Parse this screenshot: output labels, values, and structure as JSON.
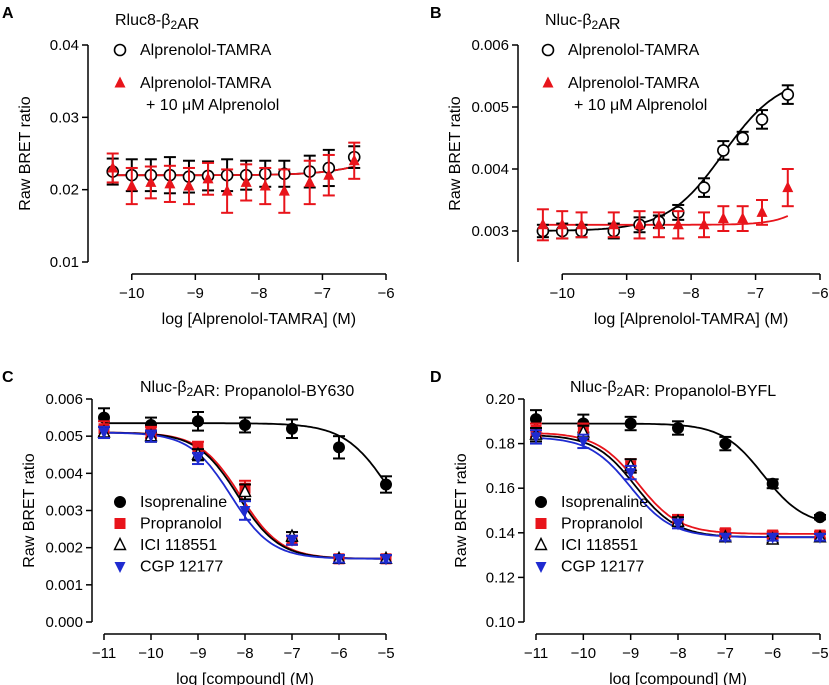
{
  "chart_data": [
    {
      "panel": "A",
      "type": "scatter",
      "title": "Rluc8-β₂AR",
      "xlabel": "log [Alprenolol-TAMRA] (M)",
      "ylabel": "Raw BRET ratio",
      "xlim": [
        -10.5,
        -6
      ],
      "ylim": [
        0.01,
        0.04
      ],
      "xticks": [
        -10,
        -9,
        -8,
        -7,
        -6
      ],
      "xticklabels": [
        "−10",
        "−9",
        "−8",
        "−7",
        "−6"
      ],
      "yticks": [
        0.01,
        0.02,
        0.03,
        0.04
      ],
      "yticklabels": [
        "0.01",
        "0.02",
        "0.03",
        "0.04"
      ],
      "legend_position": "top-left",
      "series": [
        {
          "name": "Alprenolol-TAMRA",
          "marker": "open-circle",
          "color": "#000000",
          "x": [
            -10.3,
            -10.0,
            -9.7,
            -9.4,
            -9.1,
            -8.8,
            -8.5,
            -8.2,
            -7.9,
            -7.6,
            -7.2,
            -6.9,
            -6.5
          ],
          "y": [
            0.0225,
            0.022,
            0.022,
            0.022,
            0.0218,
            0.0219,
            0.022,
            0.022,
            0.0222,
            0.0222,
            0.0225,
            0.023,
            0.0245
          ],
          "err": [
            0.0018,
            0.0022,
            0.0022,
            0.0025,
            0.0022,
            0.002,
            0.0022,
            0.002,
            0.0018,
            0.0018,
            0.0022,
            0.0025,
            0.0015
          ],
          "fit": {
            "bottom": 0.022,
            "top": 0.027,
            "logEC50": -6.0,
            "hill": 1,
            "color": "#000000"
          }
        },
        {
          "name": "Alprenolol-TAMRA\n+ 10 μM Alprenolol",
          "marker": "filled-triangle",
          "color": "#e8141b",
          "x": [
            -10.3,
            -10.0,
            -9.7,
            -9.4,
            -9.1,
            -8.8,
            -8.5,
            -8.2,
            -7.9,
            -7.6,
            -7.2,
            -6.9,
            -6.5
          ],
          "y": [
            0.023,
            0.0205,
            0.021,
            0.0208,
            0.0205,
            0.0215,
            0.0198,
            0.021,
            0.0205,
            0.0198,
            0.021,
            0.022,
            0.024
          ],
          "err": [
            0.002,
            0.0025,
            0.0022,
            0.0025,
            0.0025,
            0.0022,
            0.003,
            0.0025,
            0.0025,
            0.003,
            0.003,
            0.0028,
            0.0025
          ],
          "fit": {
            "bottom": 0.022,
            "top": 0.027,
            "logEC50": -6.0,
            "hill": 1,
            "color": "#e8141b"
          }
        }
      ]
    },
    {
      "panel": "B",
      "type": "scatter",
      "title": "Nluc-β₂AR",
      "xlabel": "log [Alprenolol-TAMRA] (M)",
      "ylabel": "Raw BRET ratio",
      "xlim": [
        -10.5,
        -6
      ],
      "ylim": [
        0.0025,
        0.006
      ],
      "xticks": [
        -10,
        -9,
        -8,
        -7,
        -6
      ],
      "xticklabels": [
        "−10",
        "−9",
        "−8",
        "−7",
        "−6"
      ],
      "yticks": [
        0.003,
        0.004,
        0.005,
        0.006
      ],
      "yticklabels": [
        "0.003",
        "0.004",
        "0.005",
        "0.006"
      ],
      "legend_position": "top-left",
      "series": [
        {
          "name": "Alprenolol-TAMRA",
          "marker": "open-circle",
          "color": "#000000",
          "x": [
            -10.3,
            -10.0,
            -9.7,
            -9.2,
            -8.8,
            -8.5,
            -8.2,
            -7.8,
            -7.5,
            -7.2,
            -6.9,
            -6.5
          ],
          "y": [
            0.003,
            0.003,
            0.003,
            0.003,
            0.0031,
            0.00315,
            0.0033,
            0.0037,
            0.0043,
            0.0045,
            0.0048,
            0.0052
          ],
          "err": [
            0.0001,
            0.00012,
            0.0001,
            0.00012,
            0.00012,
            0.0001,
            0.00012,
            0.00015,
            0.00015,
            0.0001,
            0.00015,
            0.00015
          ],
          "fit": {
            "bottom": 0.003,
            "top": 0.0055,
            "logEC50": -7.5,
            "hill": 1,
            "color": "#000000"
          }
        },
        {
          "name": "Alprenolol-TAMRA\n+ 10 μM Alprenolol",
          "marker": "filled-triangle",
          "color": "#e8141b",
          "x": [
            -10.3,
            -10.0,
            -9.7,
            -9.2,
            -8.8,
            -8.5,
            -8.2,
            -7.8,
            -7.5,
            -7.2,
            -6.9,
            -6.5
          ],
          "y": [
            0.0031,
            0.0031,
            0.0031,
            0.0031,
            0.0031,
            0.0031,
            0.0031,
            0.0031,
            0.0032,
            0.0032,
            0.0033,
            0.0037
          ],
          "err": [
            0.00025,
            0.00022,
            0.0002,
            0.0002,
            0.00022,
            0.0002,
            0.00022,
            0.0002,
            0.0002,
            0.0002,
            0.0002,
            0.0003
          ],
          "fit": {
            "bottom": 0.0031,
            "top": 0.0055,
            "logEC50": -5.7,
            "hill": 1.5,
            "color": "#e8141b"
          }
        }
      ]
    },
    {
      "panel": "C",
      "type": "scatter",
      "title": "Nluc-β₂AR: Propanolol-BY630",
      "xlabel": "log [compound] (M)",
      "ylabel": "Raw BRET ratio",
      "xlim": [
        -11,
        -5
      ],
      "ylim": [
        0,
        0.006
      ],
      "xticks": [
        -11,
        -10,
        -9,
        -8,
        -7,
        -6,
        -5
      ],
      "xticklabels": [
        "−11",
        "−10",
        "−9",
        "−8",
        "−7",
        "−6",
        "−5"
      ],
      "yticks": [
        0,
        0.001,
        0.002,
        0.003,
        0.004,
        0.005,
        0.006
      ],
      "yticklabels": [
        "0.000",
        "0.001",
        "0.002",
        "0.003",
        "0.004",
        "0.005",
        "0.006"
      ],
      "legend_position": "bottom-left",
      "series": [
        {
          "name": "Isoprenaline",
          "marker": "filled-circle",
          "color": "#000000",
          "x": [
            -11,
            -10,
            -9,
            -8,
            -7,
            -6,
            -5
          ],
          "y": [
            0.0055,
            0.0053,
            0.0054,
            0.0053,
            0.0052,
            0.0047,
            0.0037
          ],
          "err": [
            0.00025,
            0.0002,
            0.00025,
            0.0002,
            0.00025,
            0.0003,
            0.00022
          ],
          "fit": {
            "bottom": 0.0017,
            "top": 0.00535,
            "logIC50": -4.9,
            "hill": 0.9,
            "color": "#000000"
          }
        },
        {
          "name": "Propranolol",
          "marker": "filled-square",
          "color": "#e8141b",
          "x": [
            -11,
            -10,
            -9,
            -8,
            -7,
            -6,
            -5
          ],
          "y": [
            0.0052,
            0.0051,
            0.0047,
            0.0036,
            0.0022,
            0.0017,
            0.0017
          ],
          "err": [
            0.0002,
            0.00015,
            0.00015,
            0.0002,
            0.00012,
            0.0001,
            0.0001
          ],
          "fit": {
            "bottom": 0.0017,
            "top": 0.0051,
            "logIC50": -8.1,
            "hill": 1,
            "color": "#e8141b"
          }
        },
        {
          "name": "ICI 118551",
          "marker": "open-triangle",
          "color": "#000000",
          "x": [
            -11,
            -10,
            -9,
            -8,
            -7,
            -6,
            -5
          ],
          "y": [
            0.0051,
            0.005,
            0.0045,
            0.0035,
            0.0023,
            0.0017,
            0.0017
          ],
          "err": [
            0.00015,
            0.00015,
            0.00015,
            0.0002,
            0.00012,
            0.0001,
            0.0001
          ],
          "fit": {
            "bottom": 0.0017,
            "top": 0.0051,
            "logIC50": -8.15,
            "hill": 1,
            "color": "#000000"
          }
        },
        {
          "name": "CGP 12177",
          "marker": "filled-inverted-triangle",
          "color": "#1f2bd0",
          "x": [
            -11,
            -10,
            -9,
            -8,
            -7,
            -6,
            -5
          ],
          "y": [
            0.0051,
            0.005,
            0.0044,
            0.003,
            0.0022,
            0.0017,
            0.0017
          ],
          "err": [
            0.00015,
            0.00015,
            0.00015,
            0.00025,
            0.00012,
            0.0001,
            0.0001
          ],
          "fit": {
            "bottom": 0.0017,
            "top": 0.0051,
            "logIC50": -8.3,
            "hill": 1,
            "color": "#1f2bd0"
          }
        }
      ]
    },
    {
      "panel": "D",
      "type": "scatter",
      "title": "Nluc-β₂AR: Propanolol-BYFL",
      "xlabel": "log [compound] (M)",
      "ylabel": "Raw BRET ratio",
      "xlim": [
        -11,
        -5
      ],
      "ylim": [
        0.1,
        0.2
      ],
      "xticks": [
        -11,
        -10,
        -9,
        -8,
        -7,
        -6,
        -5
      ],
      "xticklabels": [
        "−11",
        "−10",
        "−9",
        "−8",
        "−7",
        "−6",
        "−5"
      ],
      "yticks": [
        0.1,
        0.12,
        0.14,
        0.16,
        0.18,
        0.2
      ],
      "yticklabels": [
        "0.10",
        "0.12",
        "0.14",
        "0.16",
        "0.18",
        "0.20"
      ],
      "legend_position": "bottom-left",
      "series": [
        {
          "name": "Isoprenaline",
          "marker": "filled-circle",
          "color": "#000000",
          "x": [
            -11,
            -10,
            -9,
            -8,
            -7,
            -6,
            -5
          ],
          "y": [
            0.191,
            0.189,
            0.189,
            0.187,
            0.18,
            0.162,
            0.147
          ],
          "err": [
            0.004,
            0.004,
            0.003,
            0.003,
            0.003,
            0.002,
            0.001
          ],
          "fit": {
            "bottom": 0.143,
            "top": 0.189,
            "logIC50": -6.2,
            "hill": 1,
            "color": "#000000"
          }
        },
        {
          "name": "Propranolol",
          "marker": "filled-square",
          "color": "#e8141b",
          "x": [
            -11,
            -10,
            -9,
            -8,
            -7,
            -6,
            -5
          ],
          "y": [
            0.186,
            0.186,
            0.17,
            0.146,
            0.14,
            0.139,
            0.139
          ],
          "err": [
            0.003,
            0.003,
            0.003,
            0.002,
            0.0015,
            0.0015,
            0.0015
          ],
          "fit": {
            "bottom": 0.1395,
            "top": 0.185,
            "logIC50": -8.85,
            "hill": 1,
            "color": "#e8141b"
          }
        },
        {
          "name": "ICI 118551",
          "marker": "open-triangle",
          "color": "#000000",
          "x": [
            -11,
            -10,
            -9,
            -8,
            -7,
            -6,
            -5
          ],
          "y": [
            0.184,
            0.185,
            0.17,
            0.145,
            0.138,
            0.137,
            0.138
          ],
          "err": [
            0.003,
            0.003,
            0.003,
            0.002,
            0.0015,
            0.0015,
            0.0015
          ],
          "fit": {
            "bottom": 0.138,
            "top": 0.184,
            "logIC50": -8.9,
            "hill": 1,
            "color": "#000000"
          }
        },
        {
          "name": "CGP 12177",
          "marker": "filled-inverted-triangle",
          "color": "#1f2bd0",
          "x": [
            -11,
            -10,
            -9,
            -8,
            -7,
            -6,
            -5
          ],
          "y": [
            0.183,
            0.181,
            0.167,
            0.144,
            0.138,
            0.138,
            0.138
          ],
          "err": [
            0.003,
            0.003,
            0.003,
            0.002,
            0.0015,
            0.0015,
            0.0015
          ],
          "fit": {
            "bottom": 0.138,
            "top": 0.183,
            "logIC50": -9.0,
            "hill": 1,
            "color": "#1f2bd0"
          }
        }
      ]
    }
  ]
}
